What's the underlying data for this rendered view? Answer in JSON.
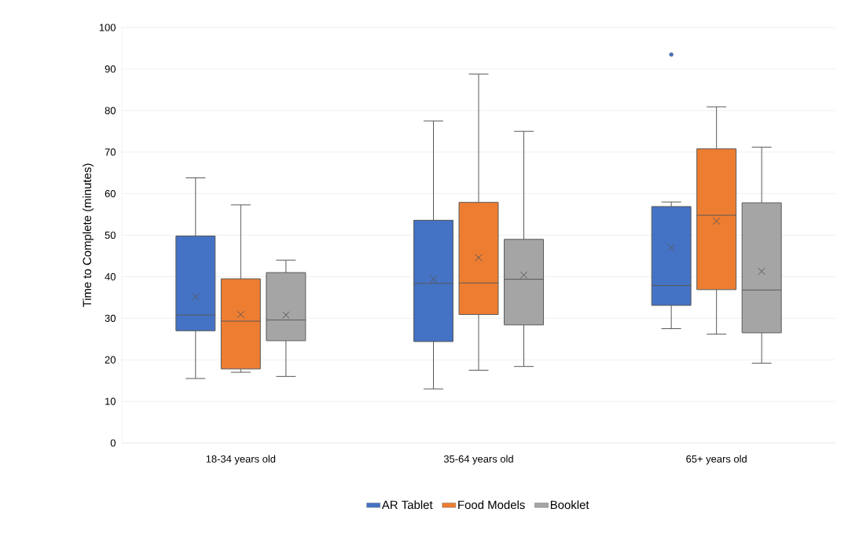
{
  "chart_data": {
    "type": "box",
    "ylabel": "Time to Complete (minutes)",
    "categories": [
      "18-34 years old",
      "35-64 years old",
      "65+ years old"
    ],
    "series": [
      {
        "name": "AR Tablet",
        "color": "#4472c4",
        "boxes": [
          {
            "low": 15.5,
            "q1": 27,
            "median": 30.8,
            "q3": 49.8,
            "high": 63.8,
            "mean": 35.2
          },
          {
            "low": 13,
            "q1": 24.4,
            "median": 38.4,
            "q3": 53.6,
            "high": 77.5,
            "mean": 39.4
          },
          {
            "low": 27.5,
            "q1": 33.1,
            "median": 37.9,
            "q3": 56.9,
            "high": 58,
            "mean": 47,
            "outliers": [
              93.5
            ]
          }
        ]
      },
      {
        "name": "Food Models",
        "color": "#ed7d31",
        "boxes": [
          {
            "low": 17,
            "q1": 17.8,
            "median": 29.3,
            "q3": 39.5,
            "high": 57.3,
            "mean": 30.9
          },
          {
            "low": 17.5,
            "q1": 30.9,
            "median": 38.5,
            "q3": 57.9,
            "high": 88.8,
            "mean": 44.6
          },
          {
            "low": 26.2,
            "q1": 36.9,
            "median": 54.8,
            "q3": 70.8,
            "high": 80.9,
            "mean": 53.4
          }
        ]
      },
      {
        "name": "Booklet",
        "color": "#a5a5a5",
        "boxes": [
          {
            "low": 16,
            "q1": 24.6,
            "median": 29.6,
            "q3": 41,
            "high": 44,
            "mean": 30.8
          },
          {
            "low": 18.4,
            "q1": 28.4,
            "median": 39.4,
            "q3": 49,
            "high": 75,
            "mean": 40.4
          },
          {
            "low": 19.2,
            "q1": 26.5,
            "median": 36.8,
            "q3": 57.8,
            "high": 71.2,
            "mean": 41.3
          }
        ]
      }
    ],
    "ylim": [
      0,
      100
    ],
    "yticks": [
      0,
      10,
      20,
      30,
      40,
      50,
      60,
      70,
      80,
      90,
      100
    ],
    "grid": "y",
    "legend": "bottom"
  }
}
